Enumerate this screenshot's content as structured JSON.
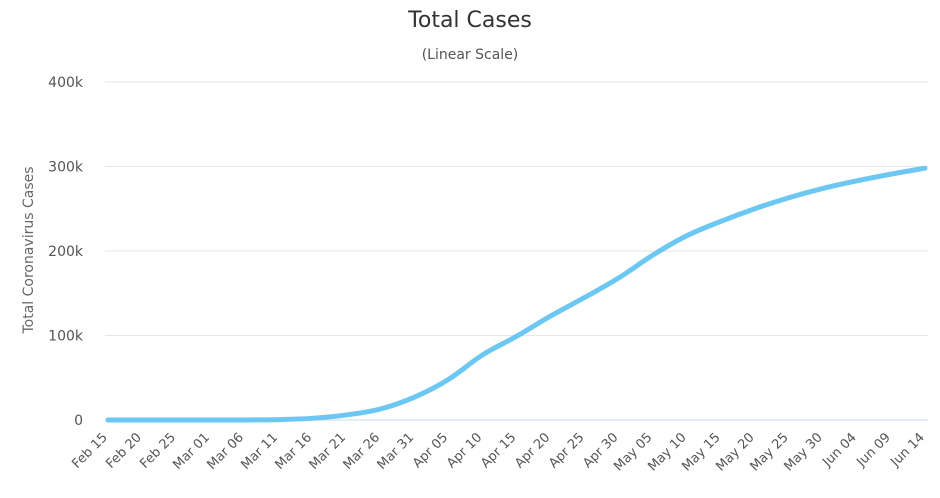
{
  "chart_data": {
    "type": "line",
    "title": "Total Cases",
    "subtitle": "(Linear Scale)",
    "xlabel": "",
    "ylabel": "Total Coronavirus Cases",
    "ylim": [
      0,
      400000
    ],
    "yticks": [
      {
        "value": 0,
        "label": "0"
      },
      {
        "value": 100000,
        "label": "100k"
      },
      {
        "value": 200000,
        "label": "200k"
      },
      {
        "value": 300000,
        "label": "300k"
      },
      {
        "value": 400000,
        "label": "400k"
      }
    ],
    "categories": [
      "Feb 15",
      "Feb 20",
      "Feb 25",
      "Mar 01",
      "Mar 06",
      "Mar 11",
      "Mar 16",
      "Mar 21",
      "Mar 26",
      "Mar 31",
      "Apr 05",
      "Apr 10",
      "Apr 15",
      "Apr 20",
      "Apr 25",
      "Apr 30",
      "May 05",
      "May 10",
      "May 15",
      "May 20",
      "May 25",
      "May 30",
      "Jun 04",
      "Jun 09",
      "Jun 14"
    ],
    "series": [
      {
        "name": "Total Cases",
        "color": "#6cc7f2",
        "values": [
          0,
          0,
          0,
          0,
          0,
          500,
          2000,
          6000,
          13000,
          27000,
          48000,
          77000,
          99000,
          123000,
          145000,
          168000,
          195000,
          218000,
          235000,
          250000,
          263000,
          274000,
          283000,
          291000,
          298000
        ]
      }
    ]
  }
}
